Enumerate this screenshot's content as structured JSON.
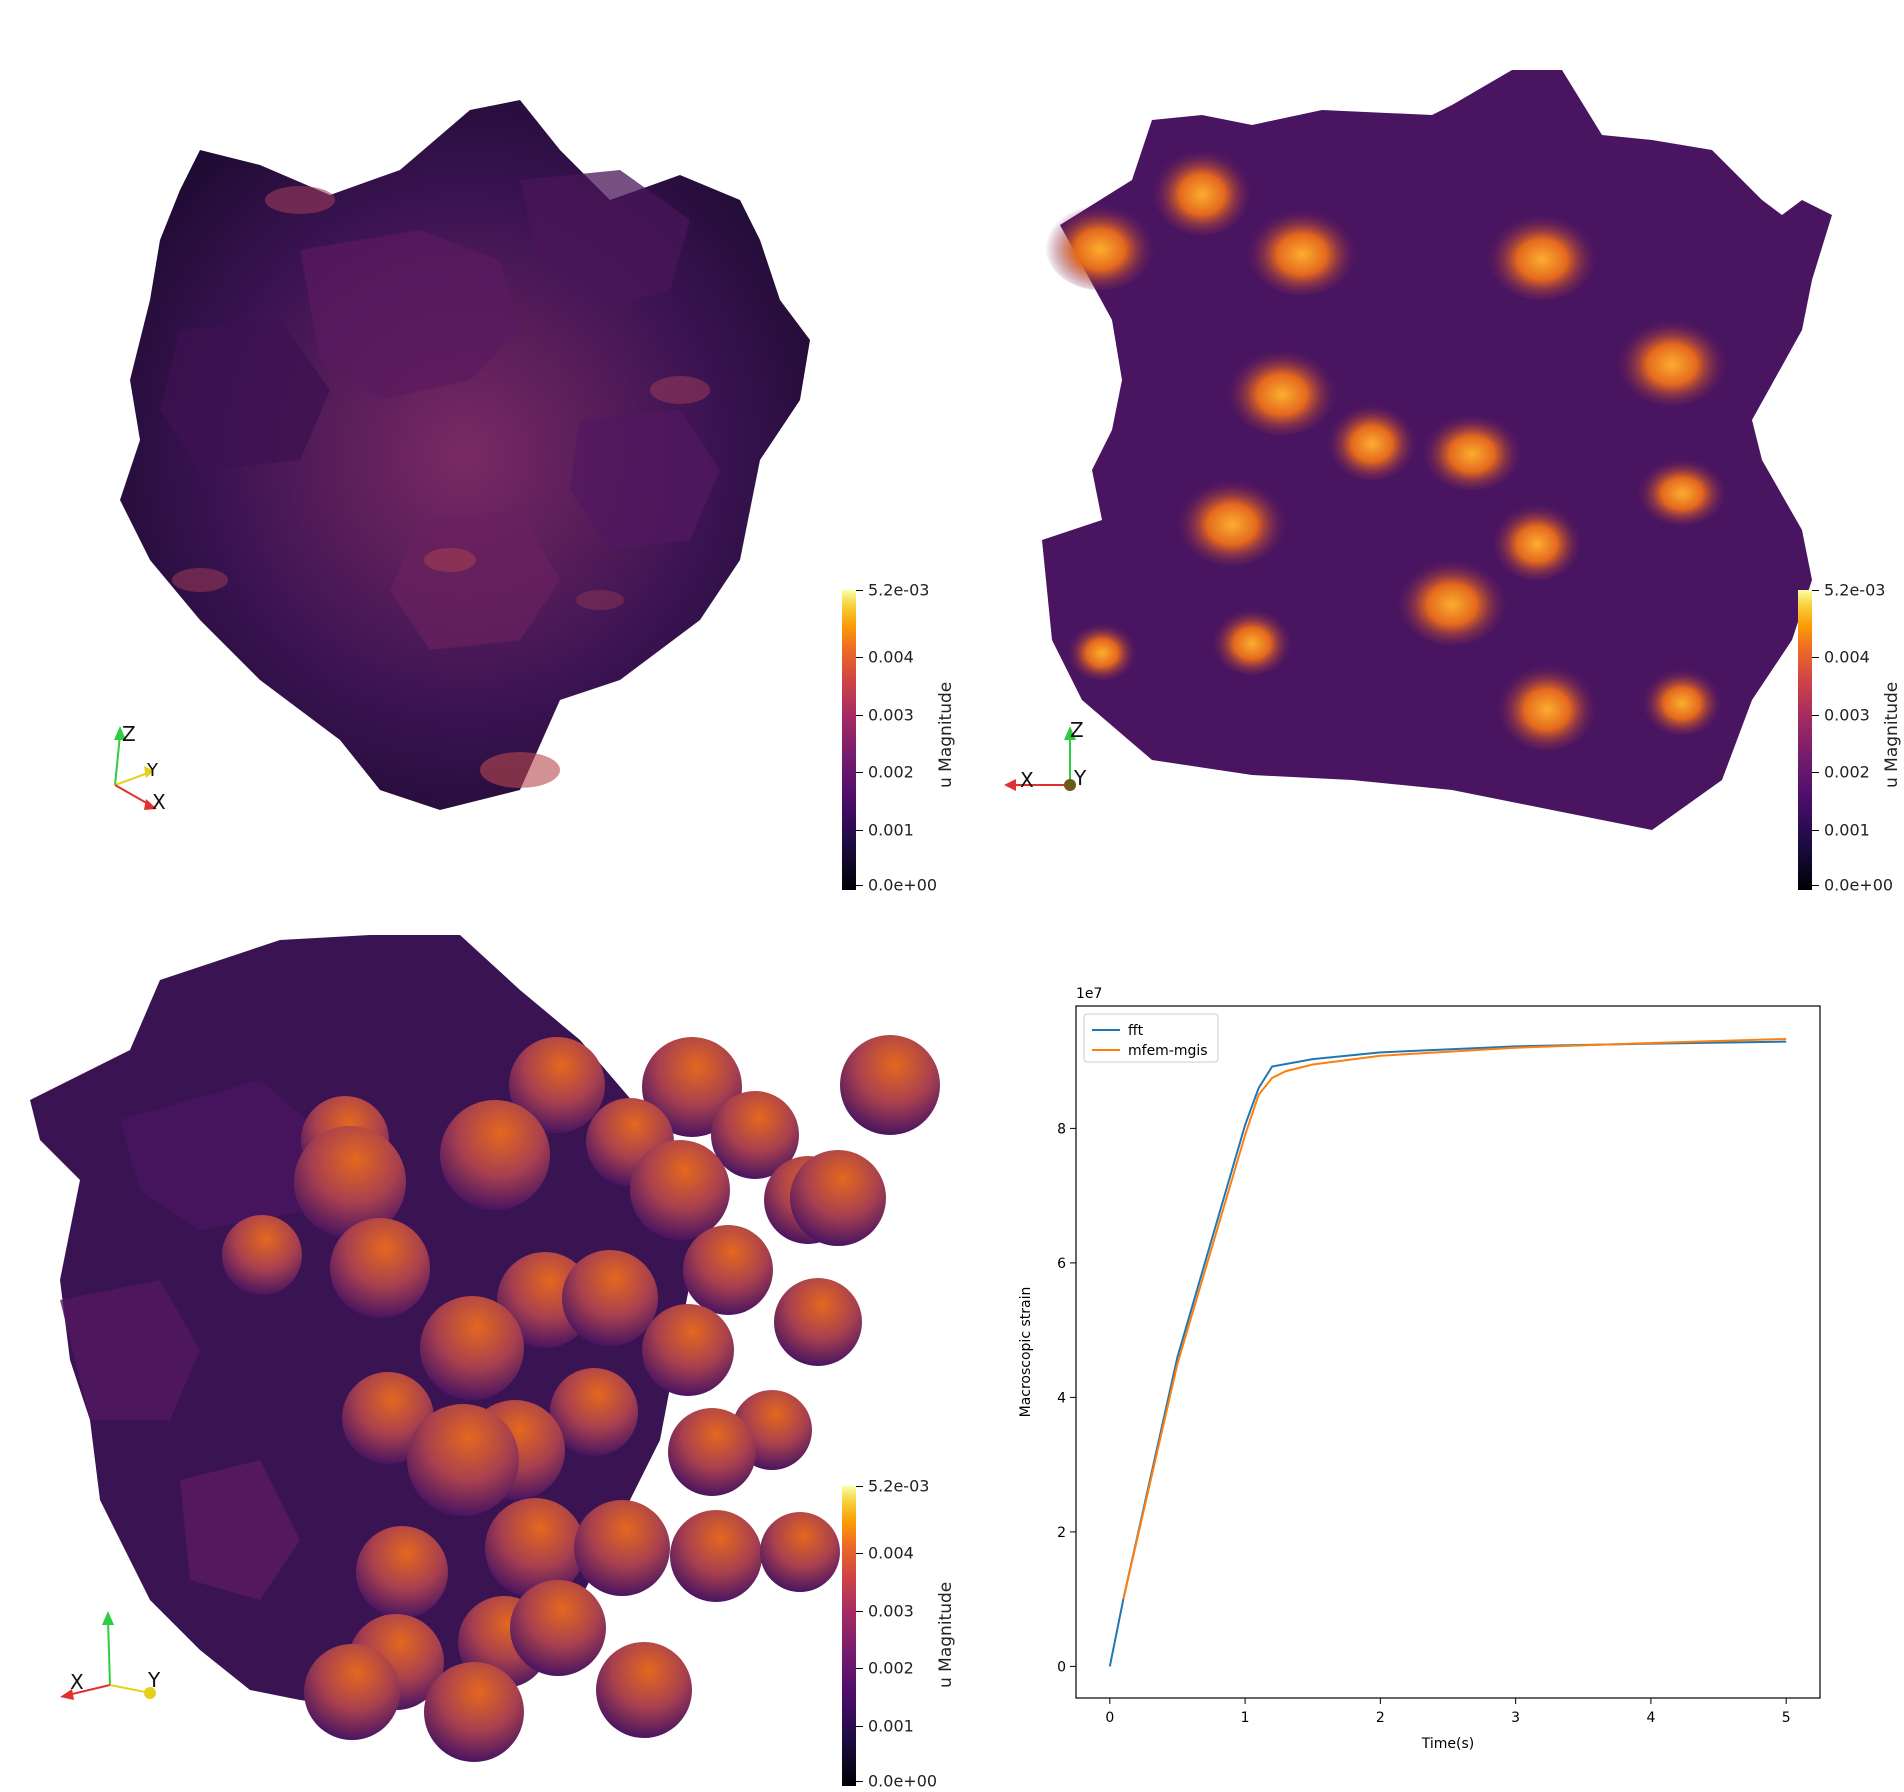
{
  "colors": {
    "inferno_dark": "#1a0a2e",
    "inferno_mid": "#6b1d5c",
    "inferno_orange": "#e4681e",
    "inferno_yellow": "#fcffa4",
    "fft_line": "#1f77b4",
    "mfem_line": "#ff7f0e"
  },
  "views": [
    {
      "colorbar": {
        "title": "u Magnitude",
        "max_label": "5.2e-03",
        "min_label": "0.0e+00",
        "ticks": [
          "0.004",
          "0.003",
          "0.002",
          "0.001"
        ]
      },
      "axes": {
        "labels": [
          "Z",
          "Y",
          "X"
        ],
        "icon": "orientation-triad-icon"
      }
    },
    {
      "colorbar": {
        "title": "u Magnitude",
        "max_label": "5.2e-03",
        "min_label": "0.0e+00",
        "ticks": [
          "0.004",
          "0.003",
          "0.002",
          "0.001"
        ]
      },
      "axes": {
        "labels": [
          "Z",
          "X",
          "Y"
        ],
        "icon": "orientation-triad-icon"
      }
    },
    {
      "colorbar": {
        "title": "u Magnitude",
        "max_label": "5.2e-03",
        "min_label": "0.0e+00",
        "ticks": [
          "0.004",
          "0.003",
          "0.002",
          "0.001"
        ]
      },
      "axes": {
        "labels": [
          "X",
          "Y"
        ],
        "icon": "orientation-triad-icon"
      }
    }
  ],
  "chart_data": {
    "type": "line",
    "title": "",
    "xlabel": "Time(s)",
    "ylabel": "Macroscopic strain",
    "offset_text": "1e7",
    "xlim": [
      -0.25,
      5.25
    ],
    "ylim": [
      -0.47,
      9.82
    ],
    "xticks": [
      0,
      1,
      2,
      3,
      4,
      5
    ],
    "yticks": [
      0,
      2,
      4,
      6,
      8
    ],
    "legend_position": "upper-left",
    "grid": false,
    "series": [
      {
        "name": "fft",
        "color": "#1f77b4",
        "x": [
          0,
          0.1,
          0.5,
          1.0,
          1.1,
          1.2,
          1.5,
          2.0,
          3.0,
          4.0,
          5.0
        ],
        "y": [
          0,
          1.0,
          4.6,
          8.05,
          8.6,
          8.92,
          9.03,
          9.13,
          9.22,
          9.26,
          9.29
        ]
      },
      {
        "name": "mfem-mgis",
        "color": "#ff7f0e",
        "x": [
          0.1,
          0.5,
          1.0,
          1.1,
          1.2,
          1.3,
          1.5,
          2.0,
          3.0,
          4.0,
          5.0
        ],
        "y": [
          1.0,
          4.5,
          7.9,
          8.5,
          8.75,
          8.85,
          8.95,
          9.08,
          9.2,
          9.27,
          9.33
        ]
      }
    ]
  }
}
